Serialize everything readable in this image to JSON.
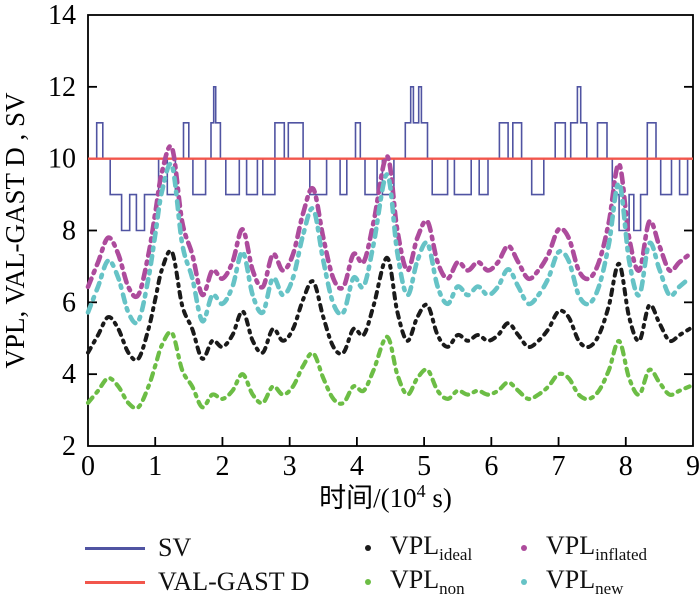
{
  "figure": {
    "background": "#ffffff"
  },
  "y_axis": {
    "label": "VPL, VAL-GAST D , SV",
    "range": [
      2,
      14
    ],
    "ticks": [
      2,
      4,
      6,
      8,
      10,
      12,
      14
    ]
  },
  "x_axis": {
    "label_pre": "时间/(10",
    "label_sup": "4",
    "label_post": " s)",
    "range": [
      0,
      9
    ],
    "ticks": [
      0,
      1,
      2,
      3,
      4,
      5,
      6,
      7,
      8,
      9
    ]
  },
  "colors": {
    "sv": "#5054a2",
    "val_gast_d": "#f2564c",
    "vpl_ideal": "#1a1a1a",
    "vpl_non": "#6cbd45",
    "vpl_inflated": "#ad4b9c",
    "vpl_new": "#66c3c6",
    "axis": "#000000"
  },
  "legend": {
    "columns": [
      [
        "sv",
        "val_gast_d"
      ],
      [
        "vpl_ideal",
        "vpl_non"
      ],
      [
        "vpl_inflated",
        "vpl_new"
      ]
    ],
    "items": {
      "sv": {
        "marker": "line",
        "color_key": "sv",
        "label": "SV",
        "sub": ""
      },
      "val_gast_d": {
        "marker": "line",
        "color_key": "val_gast_d",
        "label": "VAL-GAST D",
        "sub": ""
      },
      "vpl_ideal": {
        "marker": "dot",
        "color_key": "vpl_ideal",
        "label": "VPL",
        "sub": "ideal"
      },
      "vpl_non": {
        "marker": "dot",
        "color_key": "vpl_non",
        "label": "VPL",
        "sub": "non"
      },
      "vpl_inflated": {
        "marker": "dot",
        "color_key": "vpl_inflated",
        "label": "VPL",
        "sub": "inflated"
      },
      "vpl_new": {
        "marker": "dot",
        "color_key": "vpl_new",
        "label": "VPL",
        "sub": "new"
      }
    }
  },
  "chart_data": {
    "type": "line",
    "title": "",
    "xlabel": "时间/(10^4 s)",
    "ylabel": "VPL, VAL-GAST D , SV",
    "xlim": [
      0,
      9
    ],
    "ylim": [
      2,
      14
    ],
    "grid": false,
    "legend_position": "below",
    "series": [
      {
        "name": "SV",
        "type": "step",
        "color_key": "sv",
        "steps": [
          [
            0,
            10
          ],
          [
            0.13,
            11
          ],
          [
            0.22,
            10
          ],
          [
            0.33,
            9
          ],
          [
            0.5,
            8
          ],
          [
            0.62,
            9
          ],
          [
            0.72,
            8
          ],
          [
            0.84,
            9
          ],
          [
            1.05,
            10
          ],
          [
            1.18,
            9
          ],
          [
            1.3,
            10
          ],
          [
            1.42,
            11
          ],
          [
            1.5,
            10
          ],
          [
            1.56,
            9
          ],
          [
            1.75,
            10
          ],
          [
            1.83,
            11
          ],
          [
            1.87,
            12
          ],
          [
            1.9,
            11
          ],
          [
            1.97,
            10
          ],
          [
            2.05,
            9
          ],
          [
            2.25,
            10
          ],
          [
            2.36,
            9
          ],
          [
            2.52,
            10
          ],
          [
            2.6,
            9
          ],
          [
            2.78,
            11
          ],
          [
            2.92,
            10
          ],
          [
            2.98,
            11
          ],
          [
            3.2,
            10
          ],
          [
            3.3,
            9
          ],
          [
            3.55,
            10
          ],
          [
            3.75,
            9
          ],
          [
            3.85,
            10
          ],
          [
            3.98,
            11
          ],
          [
            4.05,
            10
          ],
          [
            4.12,
            9
          ],
          [
            4.3,
            10
          ],
          [
            4.38,
            9
          ],
          [
            4.55,
            10
          ],
          [
            4.72,
            11
          ],
          [
            4.8,
            12
          ],
          [
            4.84,
            11
          ],
          [
            4.92,
            12
          ],
          [
            4.96,
            11
          ],
          [
            5.05,
            10
          ],
          [
            5.12,
            9
          ],
          [
            5.35,
            10
          ],
          [
            5.45,
            9
          ],
          [
            5.7,
            10
          ],
          [
            5.82,
            9
          ],
          [
            5.95,
            10
          ],
          [
            6.12,
            11
          ],
          [
            6.25,
            10
          ],
          [
            6.32,
            11
          ],
          [
            6.45,
            10
          ],
          [
            6.6,
            9
          ],
          [
            6.78,
            10
          ],
          [
            6.95,
            11
          ],
          [
            7.1,
            10
          ],
          [
            7.18,
            11
          ],
          [
            7.28,
            12
          ],
          [
            7.33,
            11
          ],
          [
            7.42,
            10
          ],
          [
            7.58,
            11
          ],
          [
            7.72,
            10
          ],
          [
            7.8,
            9
          ],
          [
            7.9,
            8
          ],
          [
            8.05,
            9
          ],
          [
            8.12,
            8
          ],
          [
            8.22,
            9
          ],
          [
            8.32,
            11
          ],
          [
            8.45,
            10
          ],
          [
            8.52,
            9
          ],
          [
            8.68,
            10
          ],
          [
            8.8,
            9
          ],
          [
            8.92,
            10
          ]
        ]
      },
      {
        "name": "VAL-GAST D",
        "type": "hline",
        "color_key": "val_gast_d",
        "y": 10
      },
      {
        "name": "VPL_inflated",
        "type": "dashed",
        "color_key": "vpl_inflated",
        "x": [
          0,
          0.15,
          0.3,
          0.45,
          0.6,
          0.75,
          0.9,
          1.0,
          1.1,
          1.25,
          1.4,
          1.55,
          1.7,
          1.85,
          2.0,
          2.15,
          2.3,
          2.45,
          2.6,
          2.75,
          2.9,
          3.05,
          3.2,
          3.35,
          3.5,
          3.65,
          3.8,
          3.95,
          4.1,
          4.25,
          4.45,
          4.6,
          4.75,
          4.9,
          5.05,
          5.2,
          5.35,
          5.5,
          5.65,
          5.8,
          5.95,
          6.1,
          6.25,
          6.4,
          6.55,
          6.7,
          6.85,
          7.0,
          7.15,
          7.3,
          7.45,
          7.6,
          7.75,
          7.9,
          8.05,
          8.2,
          8.35,
          8.5,
          8.65,
          8.8,
          8.95
        ],
        "y": [
          6.43,
          7.12,
          7.8,
          7.34,
          6.43,
          6.21,
          7.34,
          8.48,
          9.62,
          10.3,
          8.25,
          7.34,
          6.21,
          6.89,
          6.66,
          7.12,
          8.03,
          6.89,
          6.43,
          7.34,
          6.89,
          7.34,
          8.48,
          9.16,
          7.8,
          6.66,
          6.43,
          7.34,
          7.12,
          8.25,
          10.07,
          8.03,
          6.89,
          7.8,
          8.25,
          7.12,
          6.66,
          7.12,
          6.89,
          7.12,
          6.89,
          7.12,
          7.57,
          7.12,
          6.66,
          6.89,
          7.34,
          8.03,
          7.8,
          6.89,
          6.66,
          7.12,
          8.25,
          9.85,
          7.8,
          6.89,
          8.25,
          7.57,
          6.89,
          7.12,
          7.34
        ]
      },
      {
        "name": "VPL_new",
        "type": "dashed",
        "color_key": "vpl_new",
        "x": [
          0,
          0.15,
          0.3,
          0.45,
          0.6,
          0.75,
          0.9,
          1.0,
          1.1,
          1.25,
          1.4,
          1.55,
          1.7,
          1.85,
          2.0,
          2.15,
          2.3,
          2.45,
          2.6,
          2.75,
          2.9,
          3.05,
          3.2,
          3.35,
          3.5,
          3.65,
          3.8,
          3.95,
          4.1,
          4.25,
          4.45,
          4.6,
          4.75,
          4.9,
          5.05,
          5.2,
          5.35,
          5.5,
          5.65,
          5.8,
          5.95,
          6.1,
          6.25,
          6.4,
          6.55,
          6.7,
          6.85,
          7.0,
          7.15,
          7.3,
          7.45,
          7.6,
          7.75,
          7.9,
          8.05,
          8.2,
          8.35,
          8.5,
          8.65,
          8.8,
          8.95
        ],
        "y": [
          5.72,
          6.44,
          7.16,
          6.68,
          5.72,
          5.48,
          6.68,
          7.88,
          9.08,
          9.8,
          7.64,
          6.68,
          5.48,
          6.2,
          5.96,
          6.44,
          7.4,
          6.2,
          5.72,
          6.68,
          6.2,
          6.68,
          7.88,
          8.6,
          7.16,
          5.96,
          5.72,
          6.68,
          6.44,
          7.64,
          9.56,
          7.4,
          6.2,
          7.16,
          7.64,
          6.44,
          5.96,
          6.44,
          6.2,
          6.44,
          6.2,
          6.44,
          6.92,
          6.44,
          5.96,
          6.2,
          6.68,
          7.4,
          7.16,
          6.2,
          5.96,
          6.44,
          7.64,
          9.32,
          7.16,
          6.2,
          7.64,
          6.92,
          6.2,
          6.44,
          6.68
        ]
      },
      {
        "name": "VPL_ideal",
        "type": "dashed",
        "color_key": "vpl_ideal",
        "x": [
          0,
          0.15,
          0.3,
          0.45,
          0.6,
          0.75,
          0.9,
          1.0,
          1.1,
          1.25,
          1.4,
          1.55,
          1.7,
          1.85,
          2.0,
          2.15,
          2.3,
          2.45,
          2.6,
          2.75,
          2.9,
          3.05,
          3.2,
          3.35,
          3.5,
          3.65,
          3.8,
          3.95,
          4.1,
          4.25,
          4.45,
          4.6,
          4.75,
          4.9,
          5.05,
          5.2,
          5.35,
          5.5,
          5.65,
          5.8,
          5.95,
          6.1,
          6.25,
          6.4,
          6.55,
          6.7,
          6.85,
          7.0,
          7.15,
          7.3,
          7.45,
          7.6,
          7.75,
          7.9,
          8.05,
          8.2,
          8.35,
          8.5,
          8.65,
          8.8,
          8.95
        ],
        "y": [
          4.6,
          5.09,
          5.59,
          5.26,
          4.6,
          4.43,
          5.26,
          6.08,
          6.91,
          7.4,
          5.92,
          5.26,
          4.43,
          4.93,
          4.76,
          5.09,
          5.75,
          4.93,
          4.6,
          5.26,
          4.93,
          5.26,
          6.08,
          6.58,
          5.59,
          4.76,
          4.6,
          5.26,
          5.09,
          5.92,
          7.24,
          5.75,
          4.93,
          5.59,
          5.92,
          5.09,
          4.76,
          5.09,
          4.93,
          5.09,
          4.93,
          5.09,
          5.42,
          5.09,
          4.76,
          4.93,
          5.26,
          5.75,
          5.59,
          4.93,
          4.76,
          5.09,
          5.92,
          7.07,
          5.59,
          4.93,
          5.92,
          5.42,
          4.93,
          5.09,
          5.26
        ]
      },
      {
        "name": "VPL_non",
        "type": "dashed",
        "color_key": "vpl_non",
        "x": [
          0,
          0.15,
          0.3,
          0.45,
          0.6,
          0.75,
          0.9,
          1.0,
          1.1,
          1.25,
          1.4,
          1.55,
          1.7,
          1.85,
          2.0,
          2.15,
          2.3,
          2.45,
          2.6,
          2.75,
          2.9,
          3.05,
          3.2,
          3.35,
          3.5,
          3.65,
          3.8,
          3.95,
          4.1,
          4.25,
          4.45,
          4.6,
          4.75,
          4.9,
          5.05,
          5.2,
          5.35,
          5.5,
          5.65,
          5.8,
          5.95,
          6.1,
          6.25,
          6.4,
          6.55,
          6.7,
          6.85,
          7.0,
          7.15,
          7.3,
          7.45,
          7.6,
          7.75,
          7.9,
          8.05,
          8.2,
          8.35,
          8.5,
          8.65,
          8.8,
          8.95
        ],
        "y": [
          3.2,
          3.54,
          3.89,
          3.66,
          3.2,
          3.08,
          3.66,
          4.23,
          4.81,
          5.15,
          4.12,
          3.66,
          3.08,
          3.43,
          3.31,
          3.54,
          4.0,
          3.43,
          3.2,
          3.66,
          3.43,
          3.66,
          4.23,
          4.58,
          3.89,
          3.31,
          3.2,
          3.66,
          3.54,
          4.12,
          5.04,
          4.0,
          3.43,
          3.89,
          4.12,
          3.54,
          3.31,
          3.54,
          3.43,
          3.54,
          3.43,
          3.54,
          3.77,
          3.54,
          3.31,
          3.43,
          3.66,
          4.0,
          3.89,
          3.43,
          3.31,
          3.54,
          4.12,
          4.92,
          3.89,
          3.43,
          4.12,
          3.77,
          3.43,
          3.54,
          3.66
        ]
      }
    ]
  }
}
